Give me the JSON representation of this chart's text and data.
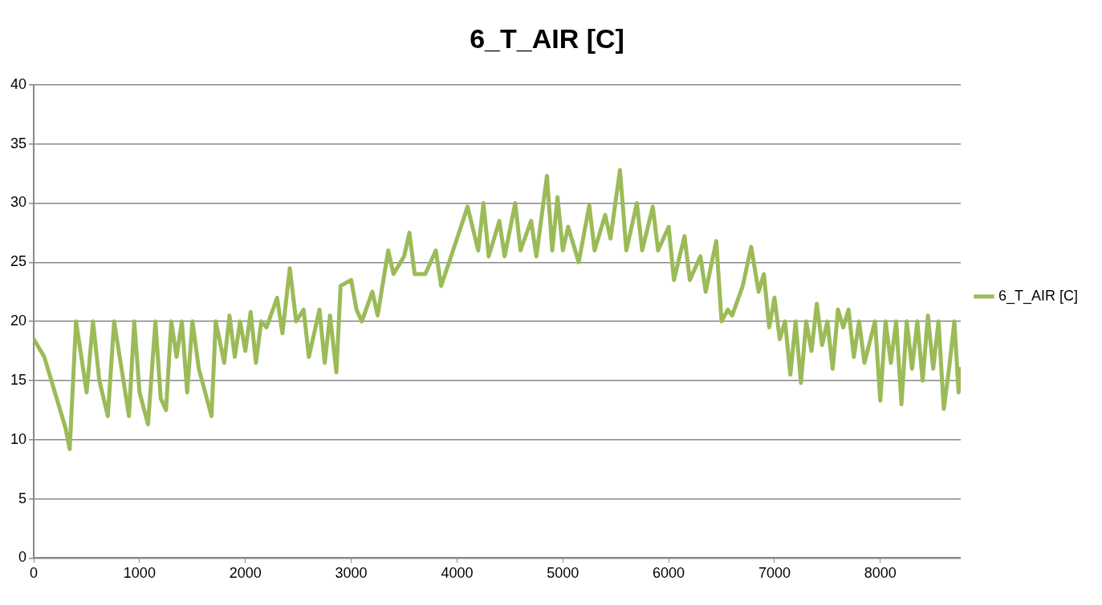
{
  "chart_data": {
    "type": "line",
    "title": "6_T_AIR [C]",
    "x": [
      0,
      100,
      200,
      300,
      340,
      400,
      500,
      560,
      620,
      700,
      760,
      830,
      900,
      950,
      1000,
      1080,
      1150,
      1200,
      1250,
      1300,
      1350,
      1400,
      1450,
      1500,
      1560,
      1620,
      1680,
      1720,
      1800,
      1850,
      1900,
      1950,
      2000,
      2050,
      2100,
      2150,
      2200,
      2300,
      2350,
      2420,
      2480,
      2550,
      2600,
      2650,
      2700,
      2750,
      2800,
      2860,
      2900,
      3000,
      3050,
      3100,
      3200,
      3250,
      3350,
      3400,
      3500,
      3550,
      3600,
      3700,
      3800,
      3850,
      4000,
      4100,
      4200,
      4250,
      4300,
      4400,
      4450,
      4550,
      4600,
      4700,
      4750,
      4850,
      4900,
      4950,
      5000,
      5050,
      5150,
      5250,
      5300,
      5400,
      5450,
      5540,
      5600,
      5700,
      5750,
      5850,
      5900,
      6000,
      6050,
      6150,
      6200,
      6300,
      6350,
      6450,
      6500,
      6560,
      6600,
      6700,
      6780,
      6850,
      6900,
      6950,
      7000,
      7050,
      7100,
      7150,
      7200,
      7250,
      7300,
      7350,
      7400,
      7450,
      7500,
      7550,
      7600,
      7650,
      7700,
      7750,
      7800,
      7850,
      7950,
      8000,
      8050,
      8100,
      8150,
      8200,
      8250,
      8300,
      8350,
      8400,
      8450,
      8500,
      8550,
      8600,
      8650,
      8700,
      8740,
      8760
    ],
    "series": [
      {
        "name": "6_T_AIR [C]",
        "color": "#9bbb59",
        "values": [
          18.5,
          17,
          14,
          11,
          9.2,
          20,
          14,
          20,
          15,
          12,
          20,
          16,
          12,
          20,
          14,
          11.3,
          20,
          13.5,
          12.5,
          20,
          17,
          20,
          14,
          20,
          16,
          14,
          12,
          20,
          16.5,
          20.5,
          17,
          20,
          17.5,
          20.8,
          16.5,
          20,
          19.5,
          22,
          19,
          24.5,
          20,
          21,
          17,
          19,
          21,
          16.5,
          20.5,
          15.7,
          23,
          23.5,
          21,
          20,
          22.5,
          20.5,
          26,
          24,
          25.5,
          27.5,
          24,
          24,
          26,
          23,
          27,
          29.7,
          26,
          30,
          25.5,
          28.5,
          25.5,
          30,
          26,
          28.5,
          25.5,
          32.3,
          26,
          30.5,
          26,
          28,
          25,
          29.8,
          26,
          29,
          27,
          32.8,
          26,
          30,
          26,
          29.7,
          26,
          28,
          23.5,
          27.2,
          23.5,
          25.5,
          22.5,
          26.8,
          20,
          21,
          20.5,
          23,
          26.3,
          22.5,
          24,
          19.5,
          22,
          18.5,
          20,
          15.5,
          20,
          14.8,
          20,
          17.5,
          21.5,
          18,
          20,
          16,
          21,
          19.5,
          21,
          17,
          20,
          16.5,
          20,
          13.3,
          20,
          16.5,
          20,
          13,
          20,
          16,
          20,
          15,
          20.5,
          16,
          20,
          12.6,
          16,
          20,
          14,
          16
        ]
      }
    ],
    "xlim": [
      0,
      8760
    ],
    "xticks": [
      0,
      1000,
      2000,
      3000,
      4000,
      5000,
      6000,
      7000,
      8000
    ],
    "ylim": [
      0,
      40
    ],
    "yticks": [
      0,
      5,
      10,
      15,
      20,
      25,
      30,
      35,
      40
    ],
    "grid": "y",
    "legend": "right",
    "marker": "none",
    "line_style": "solid"
  }
}
